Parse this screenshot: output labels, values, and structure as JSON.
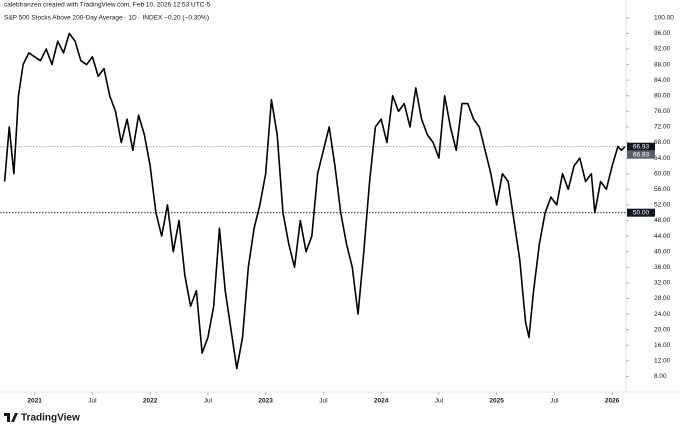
{
  "header": {
    "credit": "calebfranzen created with TradingView.com, Feb 10, 2026 12:53 UTC-5",
    "logo": "TradingView"
  },
  "chart_data": {
    "type": "line",
    "title": "S&P 500 Stocks Above 200-Day Average · 1D · INDEX −0.20 (−0.30%)",
    "x": [
      2020.74,
      2020.78,
      2020.82,
      2020.86,
      2020.9,
      2020.95,
      2021.0,
      2021.05,
      2021.1,
      2021.15,
      2021.2,
      2021.25,
      2021.3,
      2021.35,
      2021.4,
      2021.45,
      2021.5,
      2021.55,
      2021.6,
      2021.65,
      2021.7,
      2021.75,
      2021.8,
      2021.85,
      2021.9,
      2021.95,
      2022.0,
      2022.05,
      2022.1,
      2022.15,
      2022.2,
      2022.25,
      2022.3,
      2022.35,
      2022.4,
      2022.45,
      2022.5,
      2022.55,
      2022.6,
      2022.65,
      2022.7,
      2022.75,
      2022.8,
      2022.85,
      2022.9,
      2022.95,
      2023.0,
      2023.05,
      2023.1,
      2023.15,
      2023.2,
      2023.25,
      2023.3,
      2023.35,
      2023.4,
      2023.45,
      2023.5,
      2023.55,
      2023.6,
      2023.65,
      2023.7,
      2023.75,
      2023.8,
      2023.85,
      2023.9,
      2023.95,
      2024.0,
      2024.05,
      2024.1,
      2024.15,
      2024.2,
      2024.25,
      2024.3,
      2024.35,
      2024.4,
      2024.45,
      2024.5,
      2024.55,
      2024.6,
      2024.65,
      2024.7,
      2024.75,
      2024.8,
      2024.85,
      2024.9,
      2024.95,
      2025.0,
      2025.05,
      2025.1,
      2025.15,
      2025.2,
      2025.25,
      2025.28,
      2025.32,
      2025.37,
      2025.42,
      2025.47,
      2025.52,
      2025.57,
      2025.62,
      2025.67,
      2025.72,
      2025.77,
      2025.82,
      2025.85,
      2025.9,
      2025.95,
      2026.0,
      2026.05,
      2026.08,
      2026.11
    ],
    "series": [
      {
        "name": "S&P 500 Stocks Above 200-Day Average",
        "color": "#000000",
        "values": [
          58,
          72,
          60,
          80,
          88,
          91,
          90,
          89,
          92,
          88,
          94,
          91,
          96,
          94,
          89,
          88,
          90,
          85,
          87,
          80,
          76,
          68,
          74,
          66,
          75,
          70,
          62,
          50,
          44,
          52,
          40,
          48,
          34,
          26,
          30,
          14,
          18,
          26,
          46,
          30,
          20,
          10,
          18,
          36,
          46,
          52,
          60,
          79,
          70,
          50,
          42,
          36,
          48,
          40,
          44,
          60,
          66,
          72,
          62,
          50,
          42,
          36,
          24,
          40,
          58,
          72,
          74,
          68,
          80,
          76,
          78,
          72,
          82,
          74,
          70,
          68,
          64,
          80,
          72,
          66,
          78,
          78,
          74,
          72,
          66,
          60,
          52,
          60,
          58,
          48,
          38,
          22,
          18,
          30,
          42,
          50,
          54,
          52,
          60,
          56,
          62,
          64,
          58,
          60,
          50,
          58,
          56,
          62,
          67,
          66,
          66.93
        ]
      }
    ],
    "xlim": [
      2020.7,
      2026.12
    ],
    "xticks": [
      {
        "value": 2021,
        "label": "2021"
      },
      {
        "value": 2021.5,
        "label": "Jul"
      },
      {
        "value": 2022,
        "label": "2022"
      },
      {
        "value": 2022.5,
        "label": "Jul"
      },
      {
        "value": 2023,
        "label": "2023"
      },
      {
        "value": 2023.5,
        "label": "Jul"
      },
      {
        "value": 2024,
        "label": "2024"
      },
      {
        "value": 2024.5,
        "label": "Jul"
      },
      {
        "value": 2025,
        "label": "2025"
      },
      {
        "value": 2025.5,
        "label": "Jul"
      },
      {
        "value": 2026,
        "label": "2026"
      }
    ],
    "ylim": [
      4,
      102
    ],
    "yticks": [
      {
        "value": 8,
        "label": "8.00"
      },
      {
        "value": 12,
        "label": "12.00"
      },
      {
        "value": 16,
        "label": "16.00"
      },
      {
        "value": 20,
        "label": "20.00"
      },
      {
        "value": 24,
        "label": "24.00"
      },
      {
        "value": 28,
        "label": "28.00"
      },
      {
        "value": 32,
        "label": "32.00"
      },
      {
        "value": 36,
        "label": "36.00"
      },
      {
        "value": 40,
        "label": "40.00"
      },
      {
        "value": 44,
        "label": "44.00"
      },
      {
        "value": 48,
        "label": "48.00"
      },
      {
        "value": 52,
        "label": "52.00"
      },
      {
        "value": 56,
        "label": "56.00"
      },
      {
        "value": 60,
        "label": "60.00"
      },
      {
        "value": 64,
        "label": "64.00"
      },
      {
        "value": 68,
        "label": "68.00"
      },
      {
        "value": 72,
        "label": "72.00"
      },
      {
        "value": 76,
        "label": "76.00"
      },
      {
        "value": 80,
        "label": "80.00"
      },
      {
        "value": 84,
        "label": "84.00"
      },
      {
        "value": 88,
        "label": "88.00"
      },
      {
        "value": 92,
        "label": "92.00"
      },
      {
        "value": 96,
        "label": "96.00"
      },
      {
        "value": 100,
        "label": "100.00"
      }
    ],
    "last_value": 66.93,
    "last_value_labels": [
      "66.93",
      "66.93"
    ],
    "reference_line": 50,
    "reference_label": "50.00"
  }
}
